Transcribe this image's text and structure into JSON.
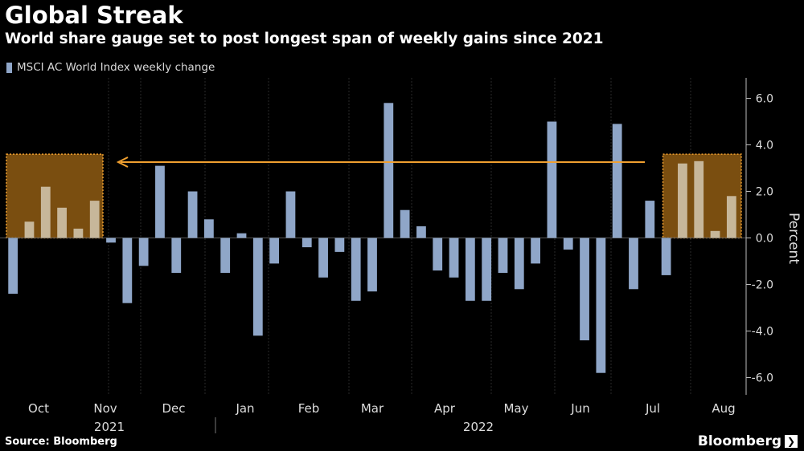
{
  "header": {
    "title": "Global Streak",
    "subtitle": "World share gauge set to post longest span of weekly gains since 2021"
  },
  "legend": {
    "label": "MSCI AC World Index weekly change"
  },
  "footer": {
    "source": "Source: Bloomberg",
    "brand": "Bloomberg",
    "brand_mark": "❯"
  },
  "colors": {
    "background": "#000000",
    "bar": "#8fa6c8",
    "highlight_fill": "#7a4e10",
    "highlight_border": "#f0a030",
    "highlight_bar": "#c7b79a",
    "arrow": "#f0a030"
  },
  "chart_data": {
    "type": "bar",
    "ylabel": "Percent",
    "ylim": [
      -6.8,
      6.8
    ],
    "yticks": [
      6.0,
      4.0,
      2.0,
      0.0,
      -2.0,
      -4.0,
      -6.0
    ],
    "ytick_labels": [
      "6.0",
      "4.0",
      "2.0",
      "0.0",
      "-2.0",
      "-4.0",
      "-6.0"
    ],
    "month_labels": [
      "Oct",
      "Nov",
      "Dec",
      "Jan",
      "Feb",
      "Mar",
      "Apr",
      "May",
      "Jun",
      "Jul",
      "Aug"
    ],
    "year_labels": [
      "2021",
      "2022"
    ],
    "values": [
      -2.4,
      0.7,
      2.2,
      1.3,
      0.4,
      1.6,
      -0.2,
      -2.8,
      -1.2,
      3.1,
      -1.5,
      2.0,
      0.8,
      -1.5,
      0.2,
      -4.2,
      -1.1,
      2.0,
      -0.4,
      -1.7,
      -0.6,
      -2.7,
      -2.3,
      5.8,
      1.2,
      0.5,
      -1.4,
      -1.7,
      -2.7,
      -2.7,
      -1.5,
      -2.2,
      -1.1,
      5.0,
      -0.5,
      -4.4,
      -5.8,
      4.9,
      -2.2,
      1.6,
      -1.6,
      3.2,
      3.3,
      0.3,
      1.8
    ],
    "highlighted_streaks": [
      {
        "start_index": 1,
        "end_index": 5
      },
      {
        "start_index": 41,
        "end_index": 44
      }
    ],
    "grid": "vertical month separators",
    "legend_position": "top-left"
  }
}
